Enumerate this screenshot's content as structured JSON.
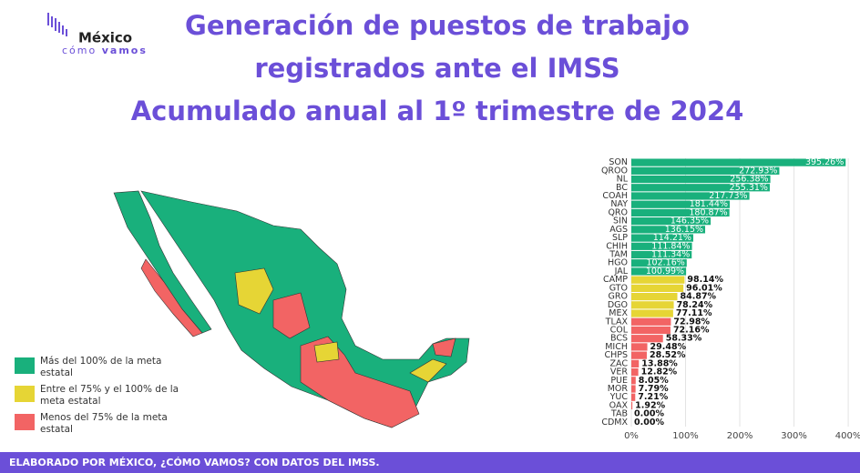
{
  "logo": {
    "name": "México",
    "tagline_a": "cómo",
    "tagline_b": "vamos"
  },
  "chart_data": {
    "type": "bar",
    "orientation": "horizontal",
    "title": [
      "Generación de puestos de trabajo",
      "registrados ante el IMSS",
      "Acumulado anual al 1º trimestre de 2024"
    ],
    "categories": [
      "SON",
      "QROO",
      "NL",
      "BC",
      "COAH",
      "NAY",
      "QRO",
      "SIN",
      "AGS",
      "SLP",
      "CHIH",
      "TAM",
      "HGO",
      "JAL",
      "CAMP",
      "GTO",
      "GRO",
      "DGO",
      "MEX",
      "TLAX",
      "COL",
      "BCS",
      "MICH",
      "CHPS",
      "ZAC",
      "VER",
      "PUE",
      "MOR",
      "YUC",
      "OAX",
      "TAB",
      "CDMX"
    ],
    "values": [
      395.26,
      272.93,
      256.38,
      255.31,
      217.73,
      181.44,
      180.87,
      146.35,
      136.15,
      114.21,
      111.84,
      111.34,
      102.16,
      100.99,
      98.14,
      96.01,
      84.87,
      78.24,
      77.11,
      72.98,
      72.16,
      58.33,
      29.48,
      28.52,
      13.88,
      12.82,
      8.05,
      7.79,
      7.21,
      1.92,
      0.0,
      0.0
    ],
    "value_labels": [
      "395.26%",
      "272.93%",
      "256.38%",
      "255.31%",
      "217.73%",
      "181.44%",
      "180.87%",
      "146.35%",
      "136.15%",
      "114.21%",
      "111.84%",
      "111.34%",
      "102.16%",
      "100.99%",
      "98.14%",
      "96.01%",
      "84.87%",
      "78.24%",
      "77.11%",
      "72.98%",
      "72.16%",
      "58.33%",
      "29.48%",
      "28.52%",
      "13.88%",
      "12.82%",
      "8.05%",
      "7.79%",
      "7.21%",
      "1.92%",
      "0.00%",
      "0.00%"
    ],
    "colors": [
      "#19b07c",
      "#19b07c",
      "#19b07c",
      "#19b07c",
      "#19b07c",
      "#19b07c",
      "#19b07c",
      "#19b07c",
      "#19b07c",
      "#19b07c",
      "#19b07c",
      "#19b07c",
      "#19b07c",
      "#19b07c",
      "#e6d535",
      "#e6d535",
      "#e6d535",
      "#e6d535",
      "#e6d535",
      "#f26464",
      "#f26464",
      "#f26464",
      "#f26464",
      "#f26464",
      "#f26464",
      "#f26464",
      "#f26464",
      "#f26464",
      "#f26464",
      "#f26464",
      "#f26464",
      "#f26464"
    ],
    "xlim": [
      0,
      415
    ],
    "xticks": [
      {
        "value": 0,
        "label": "0%"
      },
      {
        "value": 100,
        "label": "100%"
      },
      {
        "value": 200,
        "label": "200%"
      },
      {
        "value": 300,
        "label": "300%"
      },
      {
        "value": 400,
        "label": "400%"
      }
    ],
    "grid": true,
    "legend": [
      {
        "label": [
          "Más del 100% de la meta",
          "estatal"
        ],
        "color": "#19b07c"
      },
      {
        "label": [
          "Entre el 75% y el 100% de la",
          "meta estatal"
        ],
        "color": "#e6d535"
      },
      {
        "label": [
          "Menos del 75% de la meta",
          "estatal"
        ],
        "color": "#f26464"
      }
    ]
  },
  "footer": "ELABORADO POR MÉXICO, ¿CÓMO VAMOS? CON DATOS DEL IMSS."
}
